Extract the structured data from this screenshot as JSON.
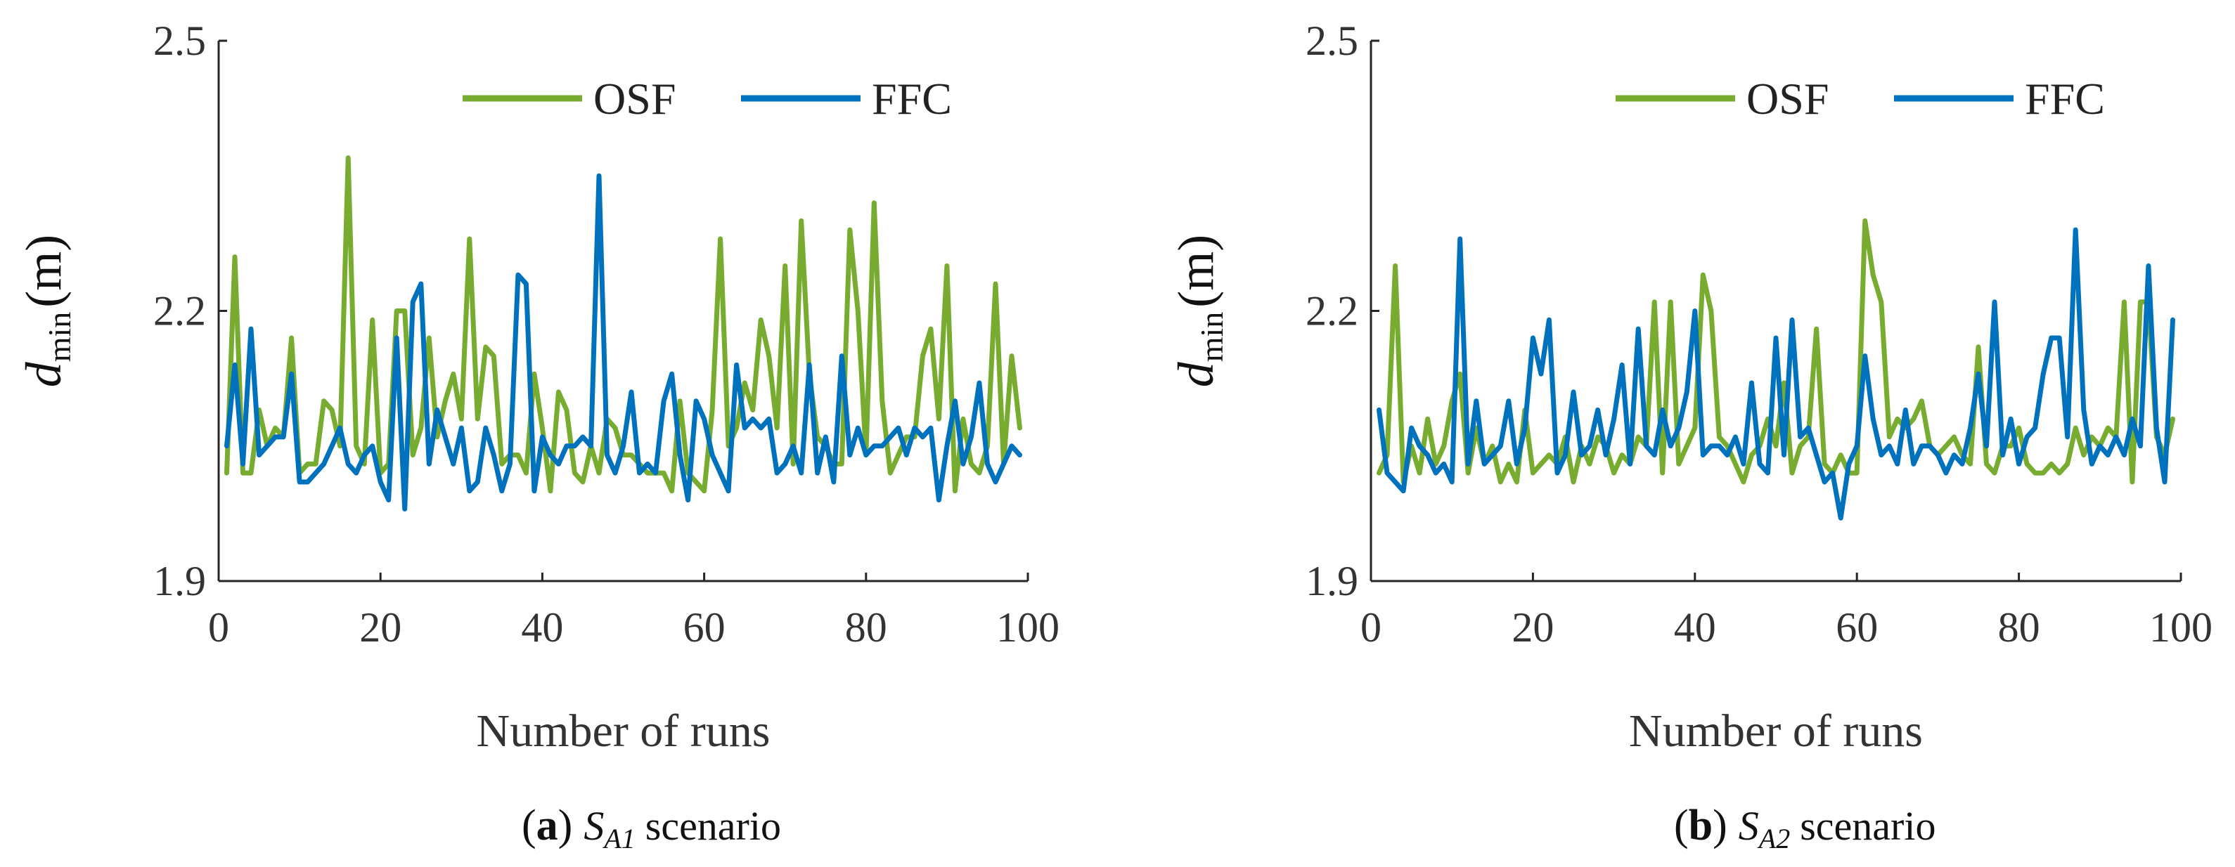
{
  "colors": {
    "osf": "#77AC30",
    "ffc": "#0072BD"
  },
  "chart_data": [
    {
      "type": "line",
      "panel_label": "(a)",
      "caption": {
        "label": "a",
        "symbol": "S",
        "symbol_sub": "A1",
        "text": "scenario"
      },
      "title": "",
      "xlabel": "Number of runs",
      "ylabel": {
        "symbol": "d",
        "sub": "min",
        "unit": "(m)"
      },
      "xlim": [
        0,
        100
      ],
      "ylim": [
        1.9,
        2.5
      ],
      "x_ticks": [
        0,
        20,
        40,
        60,
        80,
        100
      ],
      "y_ticks": [
        1.9,
        2.2,
        2.5
      ],
      "x_tick_labels": [
        "0",
        "20",
        "40",
        "60",
        "80",
        "100"
      ],
      "y_tick_labels": [
        "1.9",
        "2.2",
        "2.5"
      ],
      "legend": {
        "position": "top",
        "entries": [
          "OSF",
          "FFC"
        ]
      },
      "series": [
        {
          "name": "OSF",
          "color": "#77AC30",
          "x_start": 1,
          "values": [
            2.02,
            2.26,
            2.02,
            2.02,
            2.09,
            2.05,
            2.07,
            2.06,
            2.17,
            2.02,
            2.03,
            2.03,
            2.1,
            2.09,
            2.05,
            2.37,
            2.05,
            2.03,
            2.19,
            2.02,
            2.03,
            2.2,
            2.2,
            2.04,
            2.07,
            2.17,
            2.06,
            2.1,
            2.13,
            2.08,
            2.28,
            2.08,
            2.16,
            2.15,
            2.03,
            2.04,
            2.04,
            2.02,
            2.13,
            2.07,
            2.0,
            2.11,
            2.09,
            2.02,
            2.01,
            2.05,
            2.02,
            2.08,
            2.07,
            2.04,
            2.04,
            2.03,
            2.02,
            2.02,
            2.02,
            2.0,
            2.1,
            2.02,
            2.01,
            2.0,
            2.09,
            2.28,
            2.05,
            2.07,
            2.12,
            2.09,
            2.19,
            2.15,
            2.07,
            2.25,
            2.03,
            2.3,
            2.13,
            2.06,
            2.05,
            2.03,
            2.03,
            2.29,
            2.2,
            2.04,
            2.32,
            2.1,
            2.02,
            2.04,
            2.06,
            2.06,
            2.15,
            2.18,
            2.08,
            2.25,
            2.0,
            2.08,
            2.03,
            2.02,
            2.05,
            2.23,
            2.03,
            2.15,
            2.07
          ]
        },
        {
          "name": "FFC",
          "color": "#0072BD",
          "x_start": 1,
          "values": [
            2.05,
            2.14,
            2.03,
            2.18,
            2.04,
            2.05,
            2.06,
            2.06,
            2.13,
            2.01,
            2.01,
            2.02,
            2.03,
            2.05,
            2.07,
            2.03,
            2.02,
            2.04,
            2.05,
            2.01,
            1.99,
            2.17,
            1.98,
            2.21,
            2.23,
            2.03,
            2.09,
            2.06,
            2.03,
            2.07,
            2.0,
            2.01,
            2.07,
            2.04,
            2.0,
            2.03,
            2.24,
            2.23,
            2.0,
            2.06,
            2.04,
            2.03,
            2.05,
            2.05,
            2.06,
            2.05,
            2.35,
            2.04,
            2.02,
            2.05,
            2.11,
            2.02,
            2.03,
            2.02,
            2.1,
            2.13,
            2.04,
            1.99,
            2.1,
            2.08,
            2.04,
            2.02,
            2.0,
            2.14,
            2.07,
            2.08,
            2.07,
            2.08,
            2.02,
            2.03,
            2.05,
            2.02,
            2.14,
            2.02,
            2.06,
            2.01,
            2.15,
            2.04,
            2.07,
            2.04,
            2.05,
            2.05,
            2.06,
            2.07,
            2.04,
            2.07,
            2.06,
            2.07,
            1.99,
            2.05,
            2.1,
            2.03,
            2.06,
            2.12,
            2.03,
            2.01,
            2.03,
            2.05,
            2.04
          ]
        }
      ]
    },
    {
      "type": "line",
      "panel_label": "(b)",
      "caption": {
        "label": "b",
        "symbol": "S",
        "symbol_sub": "A2",
        "text": "scenario"
      },
      "title": "",
      "xlabel": "Number of runs",
      "ylabel": {
        "symbol": "d",
        "sub": "min",
        "unit": "(m)"
      },
      "xlim": [
        0,
        100
      ],
      "ylim": [
        1.9,
        2.5
      ],
      "x_ticks": [
        0,
        20,
        40,
        60,
        80,
        100
      ],
      "y_ticks": [
        1.9,
        2.2,
        2.5
      ],
      "x_tick_labels": [
        "0",
        "20",
        "40",
        "60",
        "80",
        "100"
      ],
      "y_tick_labels": [
        "1.9",
        "2.2",
        "2.5"
      ],
      "legend": {
        "position": "top",
        "entries": [
          "OSF",
          "FFC"
        ]
      },
      "series": [
        {
          "name": "OSF",
          "color": "#77AC30",
          "x_start": 1,
          "values": [
            2.02,
            2.04,
            2.25,
            2.01,
            2.05,
            2.02,
            2.08,
            2.03,
            2.05,
            2.1,
            2.13,
            2.02,
            2.07,
            2.03,
            2.05,
            2.01,
            2.03,
            2.01,
            2.09,
            2.02,
            2.03,
            2.04,
            2.03,
            2.06,
            2.01,
            2.05,
            2.03,
            2.06,
            2.05,
            2.02,
            2.04,
            2.03,
            2.06,
            2.05,
            2.21,
            2.02,
            2.21,
            2.03,
            2.05,
            2.07,
            2.24,
            2.2,
            2.06,
            2.05,
            2.03,
            2.01,
            2.04,
            2.05,
            2.08,
            2.05,
            2.12,
            2.02,
            2.05,
            2.06,
            2.18,
            2.03,
            2.02,
            2.04,
            2.02,
            2.02,
            2.3,
            2.24,
            2.21,
            2.06,
            2.08,
            2.07,
            2.08,
            2.1,
            2.05,
            2.04,
            2.05,
            2.06,
            2.04,
            2.03,
            2.16,
            2.03,
            2.02,
            2.05,
            2.05,
            2.07,
            2.03,
            2.02,
            2.02,
            2.03,
            2.02,
            2.03,
            2.07,
            2.04,
            2.06,
            2.05,
            2.07,
            2.06,
            2.21,
            2.01,
            2.21,
            2.21,
            2.06,
            2.04,
            2.08
          ]
        },
        {
          "name": "FFC",
          "color": "#0072BD",
          "x_start": 1,
          "values": [
            2.09,
            2.02,
            2.01,
            2.0,
            2.07,
            2.05,
            2.04,
            2.02,
            2.03,
            2.01,
            2.28,
            2.03,
            2.1,
            2.03,
            2.04,
            2.05,
            2.1,
            2.03,
            2.07,
            2.17,
            2.13,
            2.19,
            2.02,
            2.04,
            2.11,
            2.04,
            2.05,
            2.09,
            2.04,
            2.08,
            2.14,
            2.03,
            2.18,
            2.05,
            2.04,
            2.09,
            2.05,
            2.07,
            2.11,
            2.2,
            2.04,
            2.05,
            2.05,
            2.04,
            2.06,
            2.03,
            2.12,
            2.03,
            2.02,
            2.17,
            2.04,
            2.19,
            2.06,
            2.07,
            2.04,
            2.01,
            2.02,
            1.97,
            2.03,
            2.05,
            2.15,
            2.08,
            2.04,
            2.05,
            2.03,
            2.09,
            2.03,
            2.05,
            2.05,
            2.04,
            2.02,
            2.04,
            2.03,
            2.07,
            2.13,
            2.05,
            2.21,
            2.04,
            2.08,
            2.03,
            2.06,
            2.07,
            2.13,
            2.17,
            2.17,
            2.06,
            2.29,
            2.09,
            2.03,
            2.05,
            2.04,
            2.06,
            2.04,
            2.08,
            2.05,
            2.25,
            2.07,
            2.01,
            2.19
          ]
        }
      ]
    }
  ]
}
